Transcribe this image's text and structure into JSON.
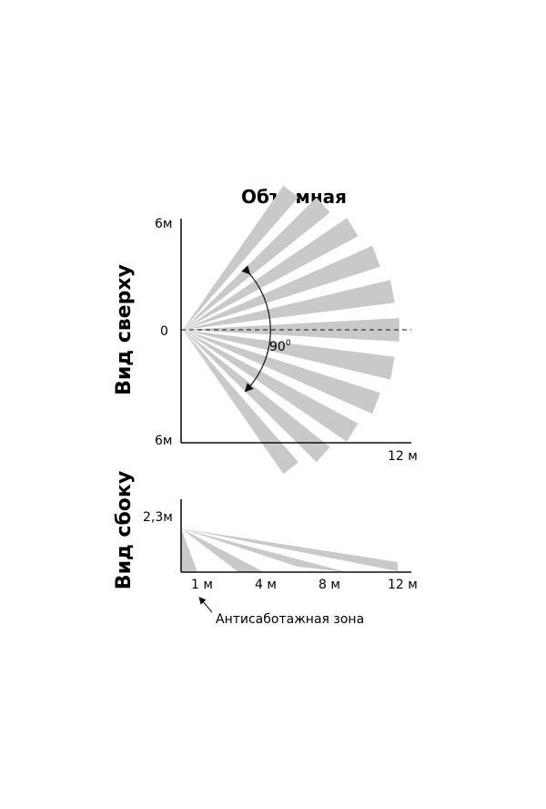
{
  "title": "Объемная",
  "top_view": {
    "side_label": "Вид сверху",
    "y_top": "6м",
    "y_zero": "0",
    "y_bottom": "6м",
    "x_end": "12 м",
    "angle": "90",
    "angle_deg_sign": "0",
    "beam_color": "#c9c9c9",
    "beams_count": 11
  },
  "side_view": {
    "side_label": "Вид сбоку",
    "height": "2,3м",
    "ticks": [
      "1 м",
      "4 м",
      "8 м",
      "12 м"
    ],
    "anti_sabotage": "Антисаботажная зона",
    "beam_color": "#c9c9c9"
  }
}
